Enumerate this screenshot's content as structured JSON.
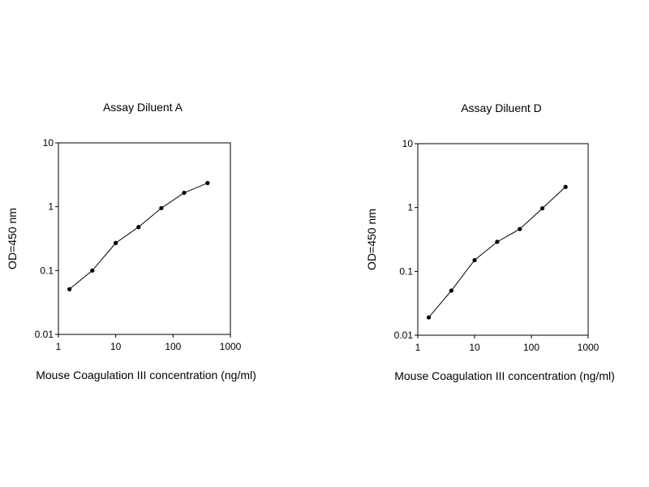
{
  "chart_data": [
    {
      "type": "line",
      "title": "Assay Diluent A",
      "xlabel": "Mouse Coagulation III concentration (ng/ml)",
      "ylabel": "OD=450 nm",
      "x_scale": "log",
      "y_scale": "log",
      "xlim": [
        1,
        1000
      ],
      "ylim": [
        0.01,
        10
      ],
      "x_ticks": [
        "1",
        "10",
        "100",
        "1000"
      ],
      "y_ticks": [
        "0.01",
        "0.1",
        "1",
        "10"
      ],
      "grid": false,
      "color": "#000000",
      "series": [
        {
          "x": [
            1.56,
            3.9,
            10,
            25,
            62.5,
            156,
            400
          ],
          "y": [
            0.051,
            0.1,
            0.27,
            0.48,
            0.95,
            1.65,
            2.35
          ]
        }
      ]
    },
    {
      "type": "line",
      "title": "Assay Diluent D",
      "xlabel": "Mouse Coagulation III concentration (ng/ml)",
      "ylabel": "OD=450 nm",
      "x_scale": "log",
      "y_scale": "log",
      "xlim": [
        1,
        1000
      ],
      "ylim": [
        0.01,
        10
      ],
      "x_ticks": [
        "1",
        "10",
        "100",
        "1000"
      ],
      "y_ticks": [
        "0.01",
        "0.1",
        "1",
        "10"
      ],
      "grid": false,
      "color": "#000000",
      "series": [
        {
          "x": [
            1.56,
            3.9,
            10,
            25,
            62.5,
            156,
            400
          ],
          "y": [
            0.019,
            0.05,
            0.15,
            0.29,
            0.46,
            0.97,
            2.1
          ]
        }
      ]
    }
  ]
}
